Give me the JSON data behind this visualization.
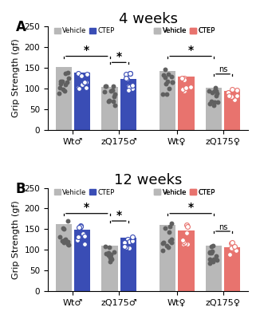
{
  "title_A": "4 weeks",
  "title_B": "12 weeks",
  "ylabel": "Grip Strength (gf)",
  "panel_A_label": "A",
  "panel_B_label": "B",
  "bar_height_A": {
    "Wt_male_vehicle": 152,
    "Wt_male_ctep": 138,
    "zQ175_male_vehicle": 103,
    "zQ175_male_ctep": 124,
    "Wt_female_vehicle": 142,
    "Wt_female_ctep": 128,
    "zQ175_female_vehicle": 101,
    "zQ175_female_ctep": 95
  },
  "bar_height_B": {
    "Wt_male_vehicle": 163,
    "Wt_male_ctep": 148,
    "zQ175_male_vehicle": 111,
    "zQ175_male_ctep": 130,
    "Wt_female_vehicle": 160,
    "Wt_female_ctep": 147,
    "zQ175_female_vehicle": 110,
    "zQ175_female_ctep": 107
  },
  "colors": {
    "vehicle": "#b8b8b8",
    "ctep_male": "#3a4db5",
    "ctep_female": "#e8736e"
  },
  "dot_vehicle_color": "#606060",
  "dot_ctep_male_color": "#3a4db5",
  "dot_ctep_female_color": "#e8736e",
  "xlabels_left": [
    "Wt♂",
    "zQ175♂"
  ],
  "xlabels_right": [
    "Wt♀",
    "zQ175♀"
  ],
  "legend_vehicle": "Vehicle",
  "legend_ctep": "CTEP",
  "ylim": [
    0,
    250
  ],
  "yticks": [
    0,
    50,
    100,
    150,
    200,
    250
  ]
}
